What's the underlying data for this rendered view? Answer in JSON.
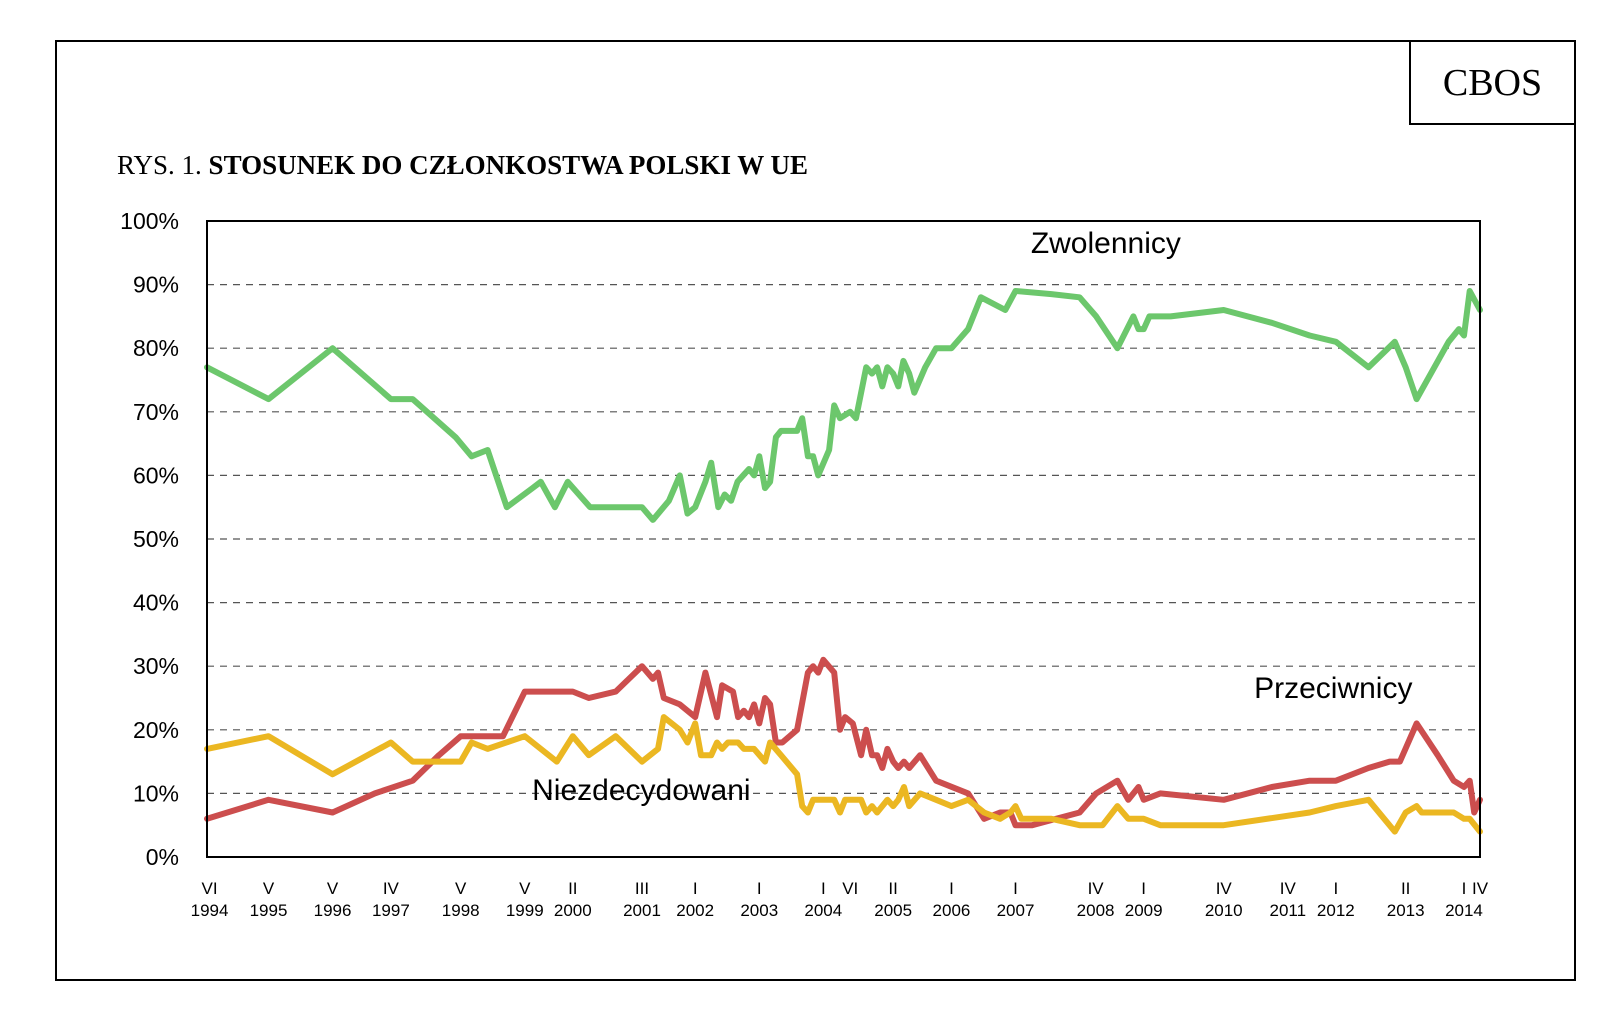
{
  "brand": "CBOS",
  "title": {
    "prefix": "RYS. 1.",
    "main": "STOSUNEK DO CZŁONKOSTWA POLSKI W UE"
  },
  "colors": {
    "zwolennicy": "#6cc76c",
    "przeciwnicy": "#cc4e4e",
    "niezdecydowani": "#ebb722"
  },
  "chart_data": {
    "type": "line",
    "y_ticks": [
      "0%",
      "10%",
      "20%",
      "30%",
      "40%",
      "50%",
      "60%",
      "70%",
      "80%",
      "90%",
      "100%"
    ],
    "ylim": [
      0,
      100
    ],
    "xlim": [
      1994.42,
      2014.29
    ],
    "grid": "horizontal-dashed",
    "x_ticks": [
      {
        "t": 1994.46,
        "top": "VI",
        "bottom": "1994"
      },
      {
        "t": 1995.38,
        "top": "V",
        "bottom": "1995"
      },
      {
        "t": 1996.38,
        "top": "V",
        "bottom": "1996"
      },
      {
        "t": 1997.29,
        "top": "IV",
        "bottom": "1997"
      },
      {
        "t": 1998.38,
        "top": "V",
        "bottom": "1998"
      },
      {
        "t": 1999.38,
        "top": "V",
        "bottom": "1999"
      },
      {
        "t": 2000.13,
        "top": "II",
        "bottom": "2000"
      },
      {
        "t": 2001.21,
        "top": "III",
        "bottom": "2001"
      },
      {
        "t": 2002.04,
        "top": "I",
        "bottom": "2002"
      },
      {
        "t": 2003.04,
        "top": "I",
        "bottom": "2003"
      },
      {
        "t": 2004.04,
        "top": "I",
        "bottom": "2004"
      },
      {
        "t": 2004.46,
        "top": "VI",
        "bottom": ""
      },
      {
        "t": 2005.13,
        "top": "II",
        "bottom": "2005"
      },
      {
        "t": 2006.04,
        "top": "I",
        "bottom": "2006"
      },
      {
        "t": 2007.04,
        "top": "I",
        "bottom": "2007"
      },
      {
        "t": 2008.29,
        "top": "IV",
        "bottom": "2008"
      },
      {
        "t": 2009.04,
        "top": "I",
        "bottom": "2009"
      },
      {
        "t": 2010.29,
        "top": "IV",
        "bottom": "2010"
      },
      {
        "t": 2011.29,
        "top": "IV",
        "bottom": "2011"
      },
      {
        "t": 2012.04,
        "top": "I",
        "bottom": "2012"
      },
      {
        "t": 2013.13,
        "top": "II",
        "bottom": "2013"
      },
      {
        "t": 2014.04,
        "top": "I",
        "bottom": "2014"
      },
      {
        "t": 2014.29,
        "top": "IV",
        "bottom": ""
      }
    ],
    "series": [
      {
        "name": "Zwolennicy",
        "color": "#6cc76c",
        "points": [
          [
            1994.42,
            77
          ],
          [
            1995.38,
            72
          ],
          [
            1996.38,
            80
          ],
          [
            1997.29,
            72
          ],
          [
            1997.63,
            72
          ],
          [
            1998.3,
            66
          ],
          [
            1998.55,
            63
          ],
          [
            1998.8,
            64
          ],
          [
            1999.1,
            55
          ],
          [
            1999.5,
            58
          ],
          [
            1999.63,
            59
          ],
          [
            1999.85,
            55
          ],
          [
            2000.05,
            59
          ],
          [
            2000.4,
            55
          ],
          [
            2000.8,
            55
          ],
          [
            2001.21,
            55
          ],
          [
            2001.38,
            53
          ],
          [
            2001.63,
            56
          ],
          [
            2001.8,
            60
          ],
          [
            2001.92,
            54
          ],
          [
            2002.04,
            55
          ],
          [
            2002.2,
            59
          ],
          [
            2002.29,
            62
          ],
          [
            2002.4,
            55
          ],
          [
            2002.5,
            57
          ],
          [
            2002.6,
            56
          ],
          [
            2002.7,
            59
          ],
          [
            2002.79,
            60
          ],
          [
            2002.88,
            61
          ],
          [
            2002.96,
            60
          ],
          [
            2003.04,
            63
          ],
          [
            2003.13,
            58
          ],
          [
            2003.21,
            59
          ],
          [
            2003.3,
            66
          ],
          [
            2003.38,
            67
          ],
          [
            2003.63,
            67
          ],
          [
            2003.71,
            69
          ],
          [
            2003.8,
            63
          ],
          [
            2003.88,
            63
          ],
          [
            2003.96,
            60
          ],
          [
            2004.13,
            64
          ],
          [
            2004.21,
            71
          ],
          [
            2004.3,
            69
          ],
          [
            2004.46,
            70
          ],
          [
            2004.55,
            69
          ],
          [
            2004.71,
            77
          ],
          [
            2004.8,
            76
          ],
          [
            2004.88,
            77
          ],
          [
            2004.96,
            74
          ],
          [
            2005.04,
            77
          ],
          [
            2005.13,
            76
          ],
          [
            2005.21,
            74
          ],
          [
            2005.29,
            78
          ],
          [
            2005.38,
            76
          ],
          [
            2005.46,
            73
          ],
          [
            2005.63,
            77
          ],
          [
            2005.8,
            80
          ],
          [
            2006.04,
            80
          ],
          [
            2006.3,
            83
          ],
          [
            2006.5,
            88
          ],
          [
            2006.88,
            86
          ],
          [
            2007.04,
            89
          ],
          [
            2007.6,
            88.5
          ],
          [
            2008.04,
            88
          ],
          [
            2008.3,
            85
          ],
          [
            2008.63,
            80
          ],
          [
            2008.88,
            85
          ],
          [
            2008.96,
            83
          ],
          [
            2009.04,
            83
          ],
          [
            2009.13,
            85
          ],
          [
            2009.46,
            85
          ],
          [
            2010.29,
            86
          ],
          [
            2011.04,
            84
          ],
          [
            2011.63,
            82
          ],
          [
            2012.04,
            81
          ],
          [
            2012.55,
            77
          ],
          [
            2012.96,
            81
          ],
          [
            2013.13,
            77
          ],
          [
            2013.3,
            72
          ],
          [
            2013.8,
            81
          ],
          [
            2013.96,
            83
          ],
          [
            2014.04,
            82
          ],
          [
            2014.13,
            89
          ],
          [
            2014.29,
            86
          ]
        ]
      },
      {
        "name": "Przeciwnicy",
        "color": "#cc4e4e",
        "points": [
          [
            1994.42,
            6
          ],
          [
            1995.38,
            9
          ],
          [
            1996.38,
            7
          ],
          [
            1997.04,
            10
          ],
          [
            1997.63,
            12
          ],
          [
            1998.04,
            16
          ],
          [
            1998.38,
            19
          ],
          [
            1998.8,
            19
          ],
          [
            1999.04,
            19
          ],
          [
            1999.38,
            26
          ],
          [
            2000.13,
            26
          ],
          [
            2000.38,
            25
          ],
          [
            2000.8,
            26
          ],
          [
            2001.21,
            30
          ],
          [
            2001.38,
            28
          ],
          [
            2001.46,
            29
          ],
          [
            2001.55,
            25
          ],
          [
            2001.8,
            24
          ],
          [
            2002.04,
            22
          ],
          [
            2002.2,
            29
          ],
          [
            2002.38,
            22
          ],
          [
            2002.46,
            27
          ],
          [
            2002.63,
            26
          ],
          [
            2002.71,
            22
          ],
          [
            2002.8,
            23
          ],
          [
            2002.88,
            22
          ],
          [
            2002.96,
            24
          ],
          [
            2003.04,
            21
          ],
          [
            2003.13,
            25
          ],
          [
            2003.21,
            24
          ],
          [
            2003.3,
            18
          ],
          [
            2003.4,
            18
          ],
          [
            2003.63,
            20
          ],
          [
            2003.8,
            29
          ],
          [
            2003.88,
            30
          ],
          [
            2003.96,
            29
          ],
          [
            2004.04,
            31
          ],
          [
            2004.21,
            29
          ],
          [
            2004.3,
            20
          ],
          [
            2004.38,
            22
          ],
          [
            2004.5,
            21
          ],
          [
            2004.63,
            16
          ],
          [
            2004.71,
            20
          ],
          [
            2004.8,
            16
          ],
          [
            2004.88,
            16
          ],
          [
            2004.96,
            14
          ],
          [
            2005.04,
            17
          ],
          [
            2005.13,
            15
          ],
          [
            2005.21,
            14
          ],
          [
            2005.3,
            15
          ],
          [
            2005.38,
            14
          ],
          [
            2005.55,
            16
          ],
          [
            2005.8,
            12
          ],
          [
            2006.3,
            10
          ],
          [
            2006.55,
            6
          ],
          [
            2006.8,
            7
          ],
          [
            2006.96,
            7
          ],
          [
            2007.04,
            5
          ],
          [
            2007.3,
            5
          ],
          [
            2008.04,
            7
          ],
          [
            2008.3,
            10
          ],
          [
            2008.63,
            12
          ],
          [
            2008.8,
            9
          ],
          [
            2008.96,
            11
          ],
          [
            2009.04,
            9
          ],
          [
            2009.3,
            10
          ],
          [
            2010.29,
            9
          ],
          [
            2011.04,
            11
          ],
          [
            2011.63,
            12
          ],
          [
            2012.04,
            12
          ],
          [
            2012.55,
            14
          ],
          [
            2012.88,
            15
          ],
          [
            2013.04,
            15
          ],
          [
            2013.3,
            21
          ],
          [
            2013.63,
            16
          ],
          [
            2013.88,
            12
          ],
          [
            2014.04,
            11
          ],
          [
            2014.13,
            12
          ],
          [
            2014.2,
            7
          ],
          [
            2014.29,
            9
          ]
        ]
      },
      {
        "name": "Niezdecydowani",
        "color": "#ebb722",
        "points": [
          [
            1994.42,
            17
          ],
          [
            1995.38,
            19
          ],
          [
            1996.38,
            13
          ],
          [
            1997.29,
            18
          ],
          [
            1997.63,
            15
          ],
          [
            1998.38,
            15
          ],
          [
            1998.55,
            18
          ],
          [
            1998.8,
            17
          ],
          [
            1999.38,
            19
          ],
          [
            1999.88,
            15
          ],
          [
            2000.13,
            19
          ],
          [
            2000.38,
            16
          ],
          [
            2000.8,
            19
          ],
          [
            2001.21,
            15
          ],
          [
            2001.46,
            17
          ],
          [
            2001.55,
            22
          ],
          [
            2001.8,
            20
          ],
          [
            2001.92,
            18
          ],
          [
            2002.04,
            21
          ],
          [
            2002.13,
            16
          ],
          [
            2002.29,
            16
          ],
          [
            2002.38,
            18
          ],
          [
            2002.46,
            17
          ],
          [
            2002.55,
            18
          ],
          [
            2002.71,
            18
          ],
          [
            2002.8,
            17
          ],
          [
            2002.96,
            17
          ],
          [
            2003.13,
            15
          ],
          [
            2003.21,
            18
          ],
          [
            2003.38,
            16
          ],
          [
            2003.63,
            13
          ],
          [
            2003.71,
            8
          ],
          [
            2003.8,
            7
          ],
          [
            2003.88,
            9
          ],
          [
            2004.04,
            9
          ],
          [
            2004.21,
            9
          ],
          [
            2004.3,
            7
          ],
          [
            2004.38,
            9
          ],
          [
            2004.63,
            9
          ],
          [
            2004.71,
            7
          ],
          [
            2004.8,
            8
          ],
          [
            2004.88,
            7
          ],
          [
            2004.96,
            8
          ],
          [
            2005.04,
            9
          ],
          [
            2005.13,
            8
          ],
          [
            2005.21,
            9
          ],
          [
            2005.3,
            11
          ],
          [
            2005.38,
            8
          ],
          [
            2005.55,
            10
          ],
          [
            2005.8,
            9
          ],
          [
            2006.04,
            8
          ],
          [
            2006.3,
            9
          ],
          [
            2006.55,
            7
          ],
          [
            2006.8,
            6
          ],
          [
            2006.96,
            7
          ],
          [
            2007.04,
            8
          ],
          [
            2007.13,
            6
          ],
          [
            2007.6,
            6
          ],
          [
            2008.04,
            5
          ],
          [
            2008.4,
            5
          ],
          [
            2008.63,
            8
          ],
          [
            2008.8,
            6
          ],
          [
            2009.04,
            6
          ],
          [
            2009.3,
            5
          ],
          [
            2010.29,
            5
          ],
          [
            2011.63,
            7
          ],
          [
            2012.04,
            8
          ],
          [
            2012.55,
            9
          ],
          [
            2012.96,
            4
          ],
          [
            2013.13,
            7
          ],
          [
            2013.3,
            8
          ],
          [
            2013.38,
            7
          ],
          [
            2013.88,
            7
          ],
          [
            2014.04,
            6
          ],
          [
            2014.13,
            6
          ],
          [
            2014.29,
            4
          ]
        ]
      }
    ],
    "annotations": [
      {
        "text": "Zwolennicy",
        "t": 2008.45,
        "v": 95
      },
      {
        "text": "Przeciwnicy",
        "t": 2012.0,
        "v": 25
      },
      {
        "text": "Niezdecydowani",
        "t": 2001.2,
        "v": 9
      }
    ]
  }
}
